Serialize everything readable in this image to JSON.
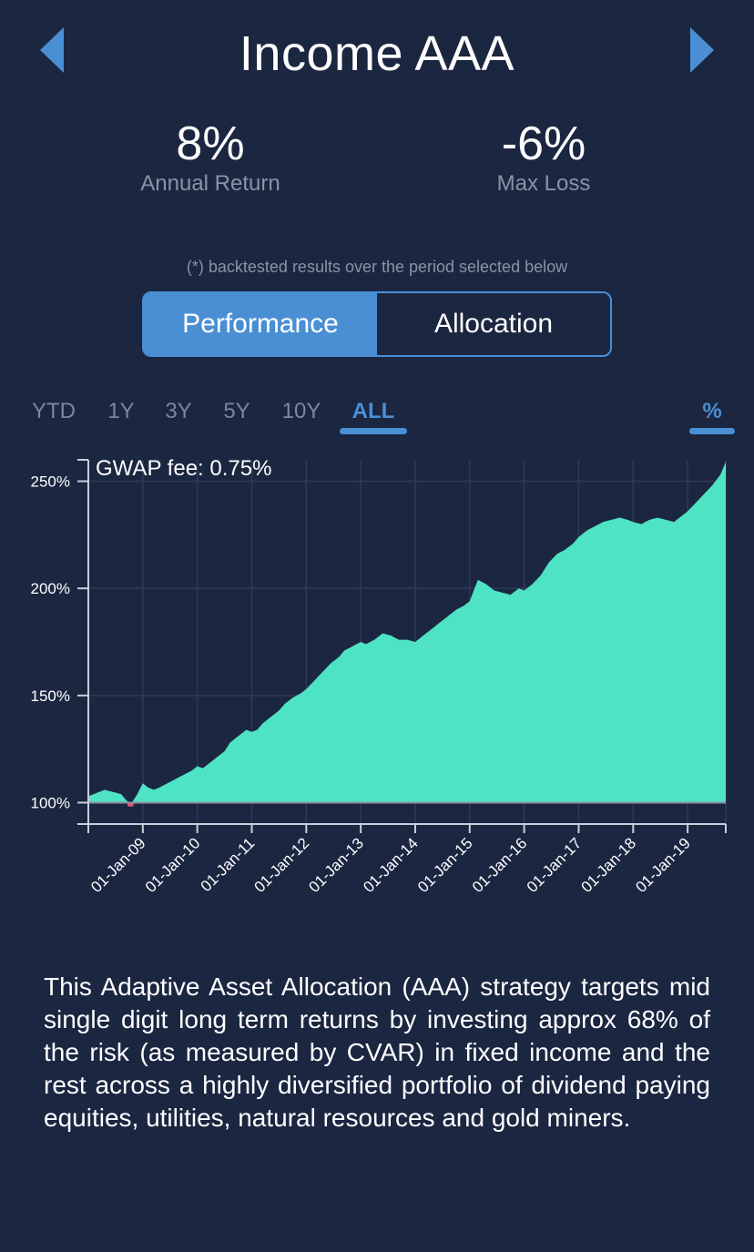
{
  "header": {
    "title": "Income AAA",
    "prev_icon": "chevron-left-icon",
    "next_icon": "chevron-right-icon"
  },
  "stats": {
    "annual_return": {
      "value": "8%",
      "label": "Annual Return"
    },
    "max_loss": {
      "value": "-6%",
      "label": "Max Loss"
    }
  },
  "footnote": "(*) backtested results over the period selected below",
  "tabs": [
    {
      "label": "Performance",
      "active": true
    },
    {
      "label": "Allocation",
      "active": false
    }
  ],
  "periods": [
    {
      "label": "YTD",
      "active": false
    },
    {
      "label": "1Y",
      "active": false
    },
    {
      "label": "3Y",
      "active": false
    },
    {
      "label": "5Y",
      "active": false
    },
    {
      "label": "10Y",
      "active": false
    },
    {
      "label": "ALL",
      "active": true
    }
  ],
  "unit_toggle": {
    "label": "%",
    "active": true
  },
  "colors": {
    "background": "#1b2641",
    "accent": "#4a8fd4",
    "area_fill": "#4fe3c5",
    "negative": "#e0566b",
    "muted_text": "#8a93a5"
  },
  "chart_data": {
    "type": "area",
    "annotation": "GWAP fee: 0.75%",
    "y_ticks": [
      "100%",
      "150%",
      "200%",
      "250%"
    ],
    "y_tick_values": [
      100,
      150,
      200,
      250
    ],
    "x_ticks": [
      "01-Jan-09",
      "01-Jan-10",
      "01-Jan-11",
      "01-Jan-12",
      "01-Jan-13",
      "01-Jan-14",
      "01-Jan-15",
      "01-Jan-16",
      "01-Jan-17",
      "01-Jan-18",
      "01-Jan-19"
    ],
    "x_tick_values": [
      2009,
      2010,
      2011,
      2012,
      2013,
      2014,
      2015,
      2016,
      2017,
      2018,
      2019
    ],
    "xlim": [
      2008.0,
      2019.7
    ],
    "ylim": [
      90,
      260
    ],
    "baseline": 100,
    "x": [
      2008.0,
      2008.1,
      2008.3,
      2008.45,
      2008.6,
      2008.7,
      2008.75,
      2008.8,
      2008.9,
      2009.0,
      2009.1,
      2009.2,
      2009.3,
      2009.45,
      2009.6,
      2009.75,
      2009.9,
      2010.0,
      2010.1,
      2010.2,
      2010.35,
      2010.5,
      2010.6,
      2010.75,
      2010.9,
      2011.0,
      2011.1,
      2011.2,
      2011.35,
      2011.5,
      2011.6,
      2011.75,
      2011.9,
      2012.0,
      2012.15,
      2012.3,
      2012.45,
      2012.6,
      2012.7,
      2012.85,
      2013.0,
      2013.1,
      2013.25,
      2013.4,
      2013.55,
      2013.7,
      2013.85,
      2014.0,
      2014.15,
      2014.3,
      2014.45,
      2014.6,
      2014.75,
      2014.9,
      2015.0,
      2015.15,
      2015.3,
      2015.45,
      2015.6,
      2015.75,
      2015.9,
      2016.0,
      2016.15,
      2016.3,
      2016.45,
      2016.6,
      2016.75,
      2016.9,
      2017.0,
      2017.15,
      2017.3,
      2017.45,
      2017.6,
      2017.75,
      2017.9,
      2018.0,
      2018.15,
      2018.3,
      2018.45,
      2018.6,
      2018.75,
      2018.9,
      2019.0,
      2019.15,
      2019.3,
      2019.45,
      2019.6,
      2019.7
    ],
    "values": [
      103,
      104,
      106,
      105,
      104,
      101,
      99,
      99,
      104,
      109,
      107,
      106,
      107,
      109,
      111,
      113,
      115,
      117,
      116,
      118,
      121,
      124,
      128,
      131,
      134,
      133,
      134,
      137,
      140,
      143,
      146,
      149,
      151,
      153,
      157,
      161,
      165,
      168,
      171,
      173,
      175,
      174,
      176,
      179,
      178,
      176,
      176,
      175,
      178,
      181,
      184,
      187,
      190,
      192,
      194,
      204,
      202,
      199,
      198,
      197,
      200,
      199,
      202,
      206,
      212,
      216,
      218,
      221,
      224,
      227,
      229,
      231,
      232,
      233,
      232,
      231,
      230,
      232,
      233,
      232,
      231,
      234,
      236,
      240,
      244,
      248,
      253,
      259
    ]
  },
  "description": "This Adaptive Asset Allocation (AAA) strategy targets mid single digit long term returns by investing approx 68% of the risk (as measured by CVAR) in fixed income and the rest across a highly diversified portfolio of dividend paying equities, utilities, natural resources and gold miners."
}
